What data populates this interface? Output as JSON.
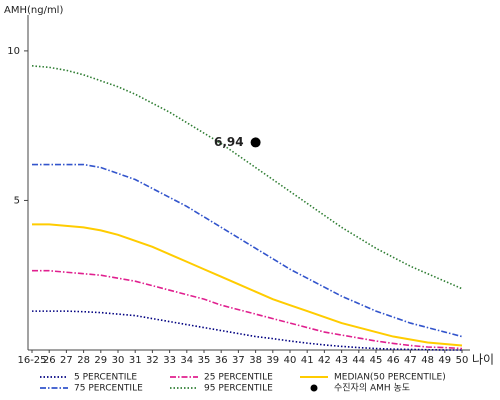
{
  "chart_data": {
    "type": "line",
    "y_label": "AMH(ng/ml)",
    "x_label": "나이",
    "categories": [
      "16-25",
      "26",
      "27",
      "28",
      "29",
      "30",
      "31",
      "32",
      "33",
      "34",
      "35",
      "36",
      "37",
      "38",
      "39",
      "40",
      "41",
      "42",
      "43",
      "44",
      "45",
      "46",
      "47",
      "48",
      "49",
      "50"
    ],
    "ylim": [
      0,
      11.2
    ],
    "yticks": [
      5,
      10
    ],
    "series": [
      {
        "name": "5 PERCENTILE",
        "color": "#000080",
        "style": "dotted",
        "values": [
          1.3,
          1.3,
          1.3,
          1.28,
          1.25,
          1.2,
          1.15,
          1.05,
          0.95,
          0.85,
          0.75,
          0.65,
          0.55,
          0.45,
          0.38,
          0.3,
          0.23,
          0.17,
          0.12,
          0.08,
          0.05,
          0.03,
          0.02,
          0.01,
          0,
          0
        ]
      },
      {
        "name": "25 PERCENTILE",
        "color": "#e0208f",
        "style": "dashdot",
        "values": [
          2.65,
          2.65,
          2.6,
          2.55,
          2.5,
          2.4,
          2.3,
          2.15,
          2.0,
          1.85,
          1.7,
          1.5,
          1.35,
          1.2,
          1.05,
          0.9,
          0.75,
          0.6,
          0.5,
          0.4,
          0.3,
          0.22,
          0.15,
          0.1,
          0.08,
          0.05
        ]
      },
      {
        "name": "MEDIAN(50 PERCENTILE)",
        "color": "#ffcc00",
        "style": "solid",
        "values": [
          4.2,
          4.2,
          4.15,
          4.1,
          4.0,
          3.85,
          3.65,
          3.45,
          3.2,
          2.95,
          2.7,
          2.45,
          2.2,
          1.95,
          1.7,
          1.5,
          1.3,
          1.1,
          0.9,
          0.75,
          0.6,
          0.45,
          0.35,
          0.25,
          0.2,
          0.15
        ]
      },
      {
        "name": "75 PERCENTILE",
        "color": "#3355cc",
        "style": "dashdot",
        "values": [
          6.2,
          6.2,
          6.2,
          6.2,
          6.1,
          5.9,
          5.7,
          5.4,
          5.1,
          4.8,
          4.45,
          4.1,
          3.75,
          3.4,
          3.05,
          2.7,
          2.4,
          2.1,
          1.8,
          1.55,
          1.3,
          1.1,
          0.9,
          0.75,
          0.6,
          0.45
        ]
      },
      {
        "name": "95 PERCENTILE",
        "color": "#2e7d32",
        "style": "dotted",
        "values": [
          9.5,
          9.45,
          9.35,
          9.2,
          9.0,
          8.8,
          8.55,
          8.25,
          7.95,
          7.6,
          7.25,
          6.9,
          6.5,
          6.1,
          5.7,
          5.3,
          4.9,
          4.5,
          4.1,
          3.75,
          3.4,
          3.1,
          2.8,
          2.55,
          2.3,
          2.05
        ]
      }
    ],
    "point": {
      "name": "수진자의 AMH 농도",
      "x": "38",
      "value": 6.94,
      "value_label": "6,94",
      "color": "#000000"
    }
  }
}
